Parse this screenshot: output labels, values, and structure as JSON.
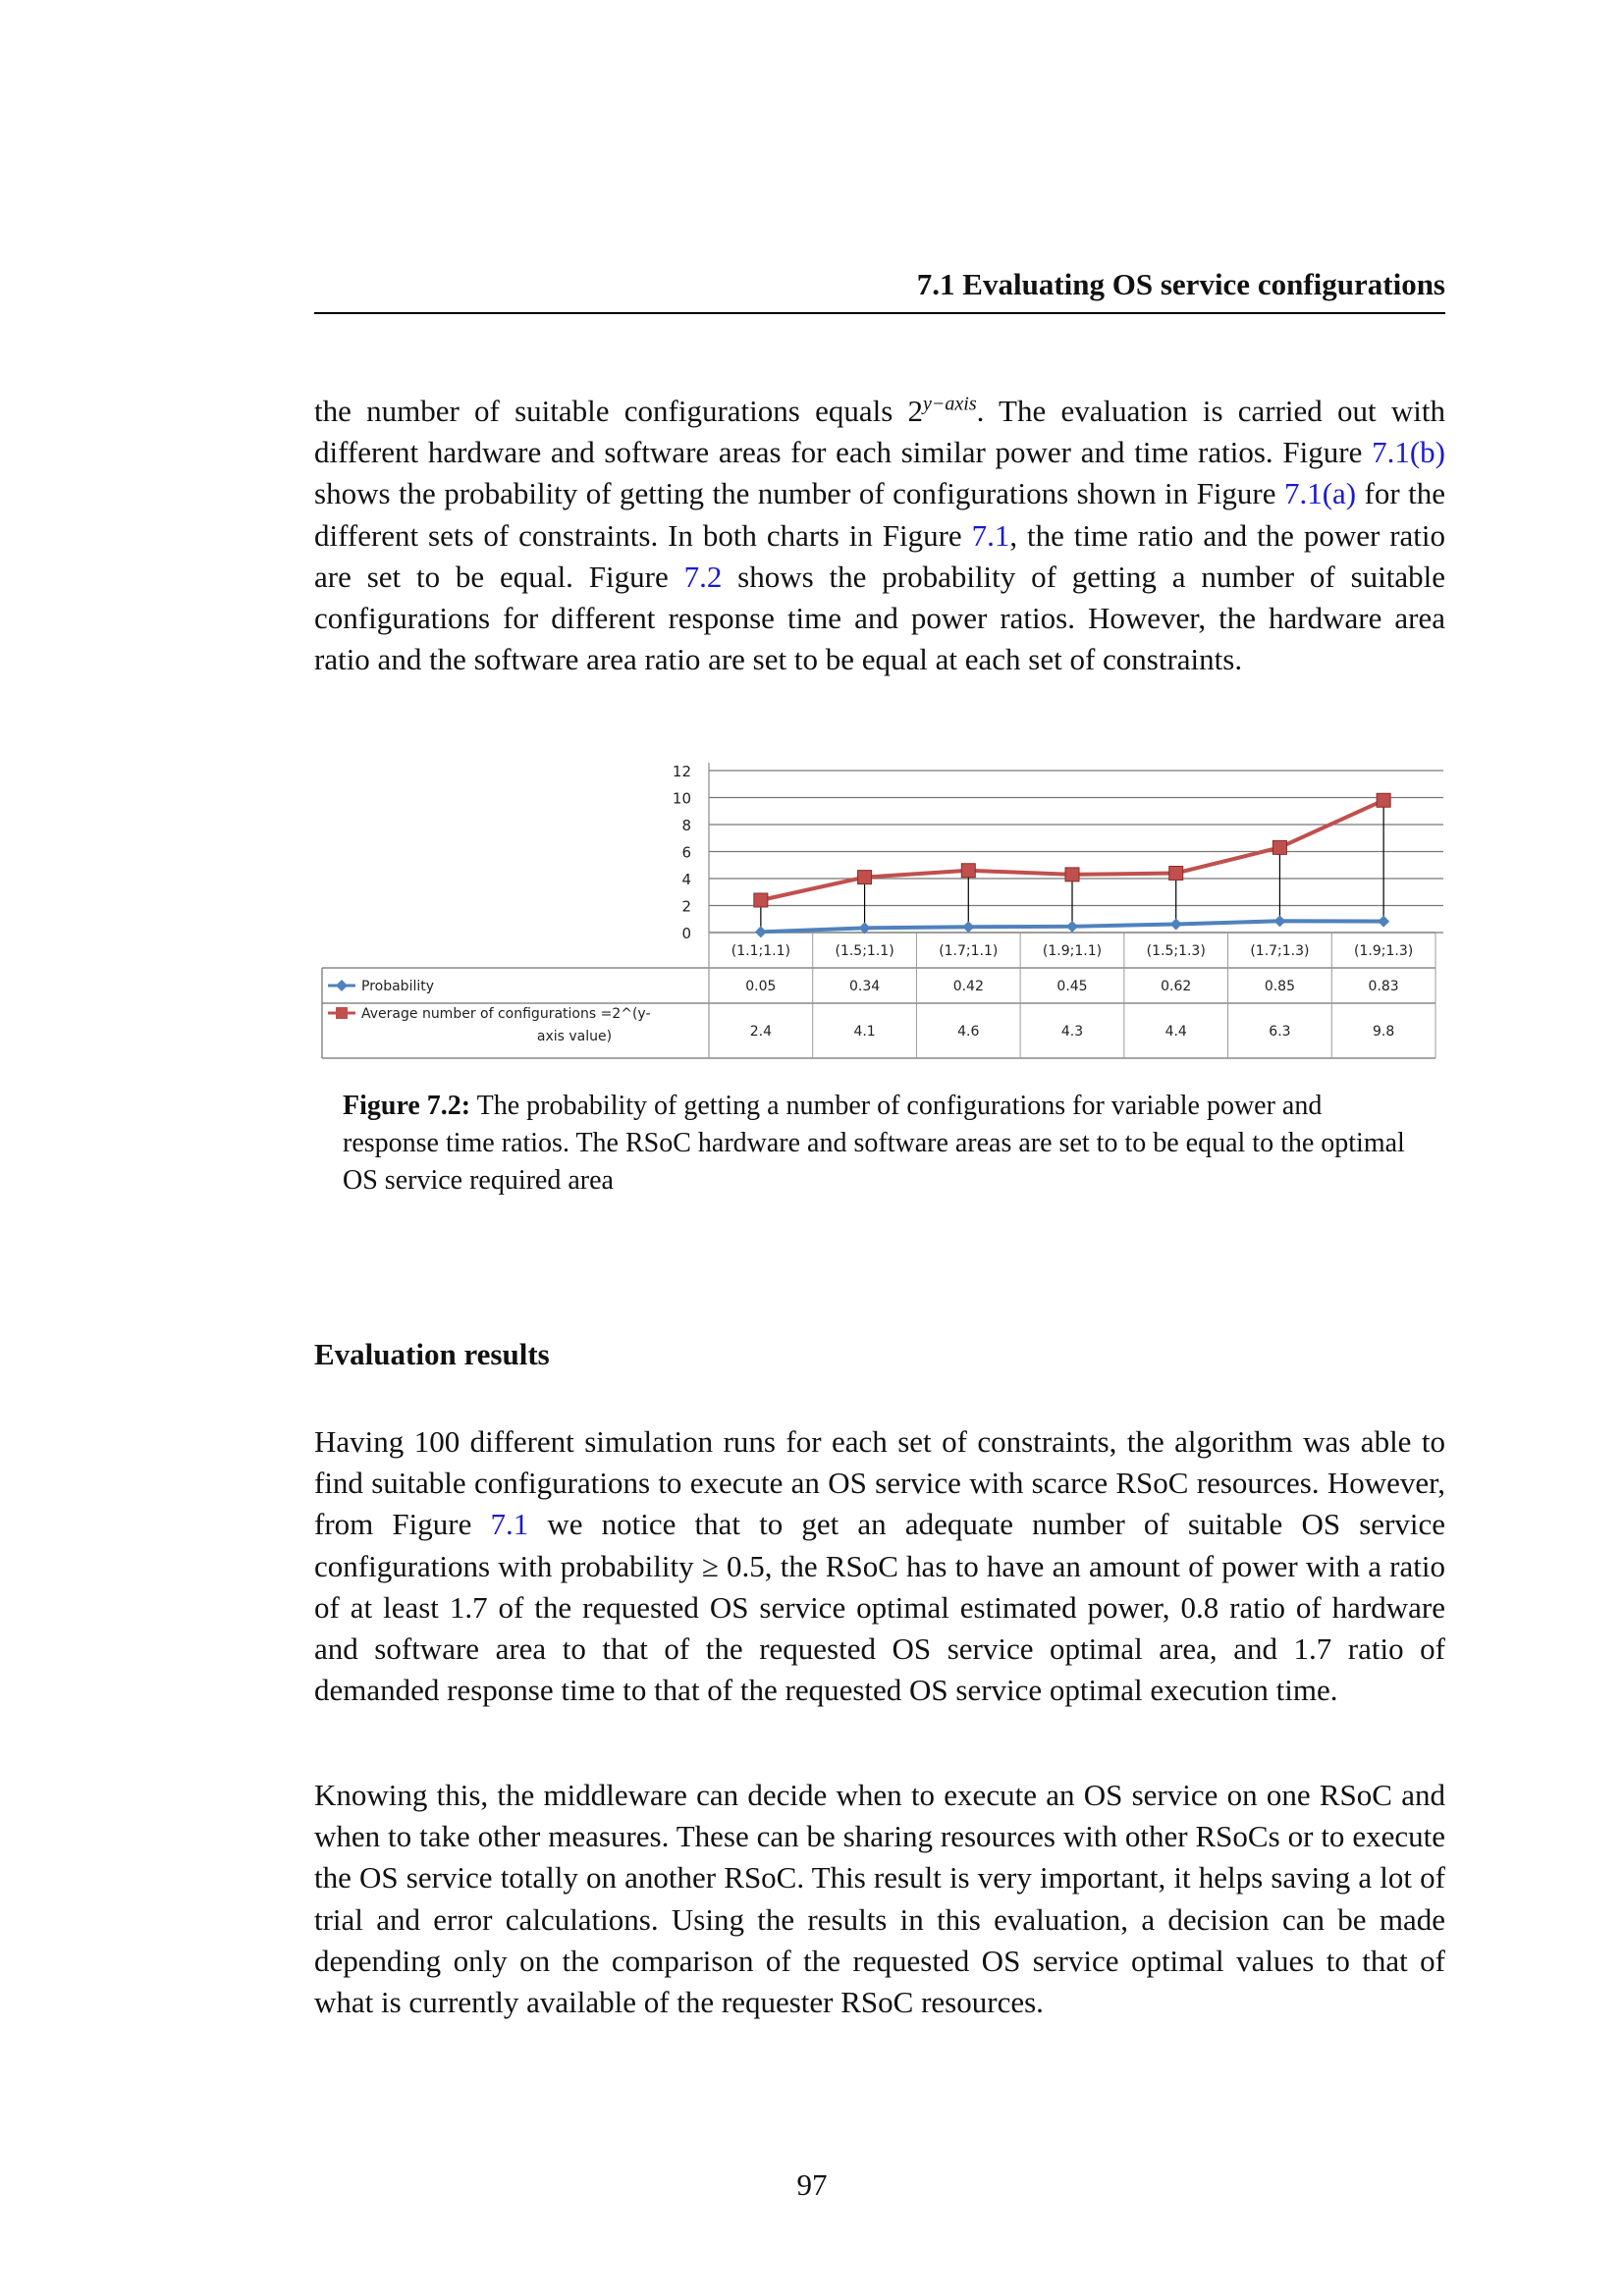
{
  "header": {
    "title": "7.1 Evaluating OS service configurations"
  },
  "paragraphs": [
    [
      {
        "t": "the number of suitable configurations equals 2"
      },
      {
        "t": "y−axis",
        "sup": true
      },
      {
        "t": ". The evaluation is carried out with different hardware and software areas for each similar power and time ratios. Figure "
      },
      {
        "t": "7.1(b)",
        "link": true
      },
      {
        "t": " shows the probability of getting the number of configurations shown in Figure "
      },
      {
        "t": "7.1(a)",
        "link": true
      },
      {
        "t": " for the different sets of constraints. In both charts in Figure "
      },
      {
        "t": "7.1",
        "link": true
      },
      {
        "t": ", the time ratio and the power ratio are set to be equal. Figure "
      },
      {
        "t": "7.2",
        "link": true
      },
      {
        "t": " shows the probability of getting a number of suitable configurations for different response time and power ratios. However, the hardware area ratio and the software area ratio are set to be equal at each set of constraints."
      }
    ],
    [
      {
        "t": "Having 100 different simulation runs for each set of constraints, the algorithm was able to find suitable configurations to execute an OS service with scarce RSoC resources. However, from Figure "
      },
      {
        "t": "7.1",
        "link": true
      },
      {
        "t": " we notice that to get an adequate number of suitable OS service configurations with probability ≥ 0.5, the RSoC has to have an amount of power with a ratio of at least 1.7 of the requested OS service optimal estimated power, 0.8 ratio of hardware and software area to that of the requested OS service optimal area, and 1.7 ratio of demanded response time to that of the requested OS service optimal execution time."
      }
    ],
    [
      {
        "t": "Knowing this, the middleware can decide when to execute an OS service on one RSoC and when to take other measures. These can be sharing resources with other RSoCs or to execute the OS service totally on another RSoC. This result is very important, it helps saving a lot of trial and error calculations. Using the results in this evaluation, a decision can be made depending only on the comparison of the requested OS service optimal values to that of what is currently available of the requester RSoC resources."
      }
    ]
  ],
  "chart_data": {
    "type": "line",
    "categories": [
      "(1.1;1.1)",
      "(1.5;1.1)",
      "(1.7;1.1)",
      "(1.9;1.1)",
      "(1.5;1.3)",
      "(1.7;1.3)",
      "(1.9;1.3)"
    ],
    "series": [
      {
        "name": "Probability",
        "values": [
          0.05,
          0.34,
          0.42,
          0.45,
          0.62,
          0.85,
          0.83
        ],
        "color": "#4f81bd",
        "marker": "diamond"
      },
      {
        "name": "Average number of configurations =2^(y-axis value)",
        "values": [
          2.4,
          4.1,
          4.6,
          4.3,
          4.4,
          6.3,
          9.8
        ],
        "color": "#c0504d",
        "marker": "square"
      }
    ],
    "ylim": [
      0,
      12
    ],
    "yticks": [
      "0",
      "2",
      "4",
      "6",
      "8",
      "10",
      "12"
    ],
    "grid": true,
    "high_low_lines": true,
    "data_table": true,
    "legend": "data-table"
  },
  "caption": {
    "label": "Figure 7.2:",
    "text": " The probability of getting a number of configurations for variable power and response time ratios. The RSoC hardware and software areas are set to to be equal to the optimal OS service required area"
  },
  "section": {
    "title": "Evaluation results"
  },
  "page_number": "97"
}
